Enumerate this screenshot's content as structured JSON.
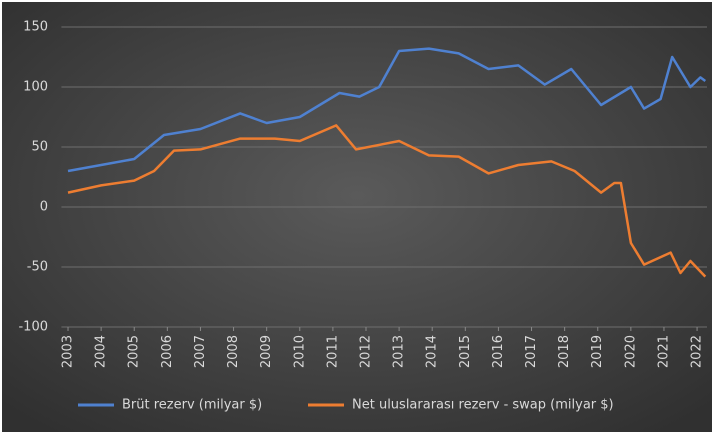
{
  "chart_data": {
    "type": "line",
    "xlim": [
      2002.8,
      2022.3
    ],
    "xticks": [
      2003,
      2004,
      2005,
      2006,
      2007,
      2008,
      2009,
      2010,
      2011,
      2012,
      2013,
      2014,
      2015,
      2016,
      2017,
      2018,
      2019,
      2020,
      2021,
      2022
    ],
    "ylim": [
      -100,
      150
    ],
    "yticks": [
      -100,
      -50,
      0,
      50,
      100,
      150
    ],
    "grid": true,
    "legend": "bottom",
    "series": [
      {
        "name": "Brüt rezerv (milyar $)",
        "color": "#4f81d0",
        "x": [
          2003,
          2004,
          2005,
          2005.9,
          2007,
          2008.2,
          2009,
          2010,
          2011.2,
          2011.8,
          2012.4,
          2013,
          2013.9,
          2014.8,
          2015.7,
          2016.6,
          2017.4,
          2018.2,
          2019.1,
          2020,
          2020.4,
          2020.9,
          2021.25,
          2021.8,
          2022.1,
          2022.25
        ],
        "values": [
          30,
          35,
          40,
          60,
          65,
          78,
          70,
          75,
          95,
          92,
          100,
          130,
          132,
          128,
          115,
          118,
          102,
          115,
          85,
          100,
          82,
          90,
          125,
          100,
          108,
          105
        ]
      },
      {
        "name": "Net uluslararası rezerv - swap (milyar $)",
        "color": "#ed7d31",
        "x": [
          2003,
          2004,
          2005,
          2005.6,
          2006.2,
          2007,
          2008.2,
          2009.25,
          2010,
          2011.1,
          2011.7,
          2013,
          2013.9,
          2014.8,
          2015.7,
          2016.6,
          2017.6,
          2018.3,
          2019.1,
          2019.5,
          2019.7,
          2020,
          2020.4,
          2021.2,
          2021.5,
          2021.8,
          2022.25
        ],
        "values": [
          12,
          18,
          22,
          30,
          47,
          48,
          57,
          57,
          55,
          68,
          48,
          55,
          43,
          42,
          28,
          35,
          38,
          30,
          12,
          20,
          20,
          -30,
          -48,
          -38,
          -55,
          -45,
          -58
        ]
      }
    ]
  }
}
